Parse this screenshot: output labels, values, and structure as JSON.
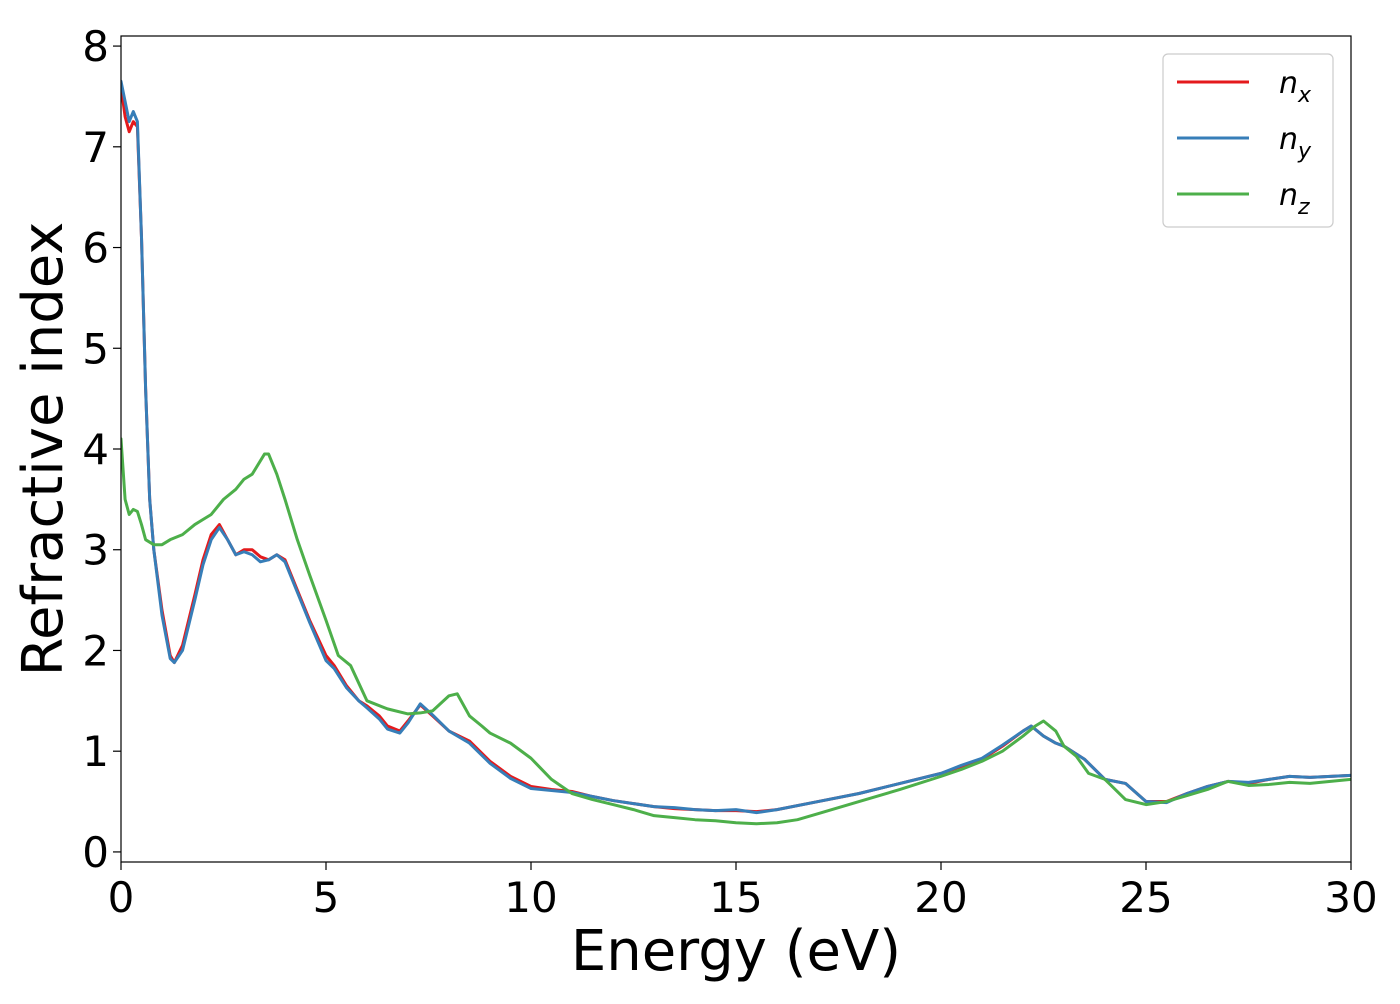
{
  "chart_data": {
    "type": "line",
    "title": "",
    "xlabel": "Energy (eV)",
    "ylabel": "Refractive index",
    "xlim": [
      0,
      30
    ],
    "ylim": [
      -0.1,
      8.1
    ],
    "xticks": [
      0,
      5,
      10,
      15,
      20,
      25,
      30
    ],
    "yticks": [
      0,
      1,
      2,
      3,
      4,
      5,
      6,
      7,
      8
    ],
    "grid": false,
    "legend": "top-right",
    "series": [
      {
        "name": "n_x",
        "label_base": "n",
        "label_sub": "x",
        "color": "#e41a1c",
        "x": [
          0,
          0.1,
          0.2,
          0.3,
          0.4,
          0.5,
          0.6,
          0.7,
          0.8,
          1.0,
          1.2,
          1.3,
          1.5,
          1.8,
          2.0,
          2.2,
          2.4,
          2.6,
          2.8,
          3.0,
          3.2,
          3.4,
          3.6,
          3.8,
          4.0,
          4.3,
          4.6,
          5.0,
          5.2,
          5.5,
          5.8,
          6.0,
          6.3,
          6.5,
          6.8,
          7.0,
          7.3,
          7.6,
          8.0,
          8.5,
          9.0,
          9.5,
          10.0,
          10.5,
          11.0,
          11.5,
          12.0,
          12.5,
          13.0,
          13.5,
          14.0,
          14.5,
          15.0,
          15.5,
          16.0,
          17.0,
          18.0,
          19.0,
          20.0,
          20.5,
          21.0,
          21.5,
          22.0,
          22.2,
          22.5,
          22.8,
          23.0,
          23.5,
          24.0,
          24.5,
          25.0,
          25.5,
          26.0,
          26.5,
          27.0,
          27.5,
          28.0,
          28.5,
          29.0,
          30.0
        ],
        "y": [
          7.6,
          7.3,
          7.15,
          7.25,
          7.2,
          6.1,
          4.6,
          3.5,
          3.0,
          2.4,
          1.95,
          1.88,
          2.05,
          2.55,
          2.9,
          3.15,
          3.25,
          3.1,
          2.95,
          3.0,
          3.0,
          2.93,
          2.9,
          2.95,
          2.9,
          2.6,
          2.3,
          1.95,
          1.85,
          1.65,
          1.5,
          1.45,
          1.35,
          1.25,
          1.2,
          1.3,
          1.46,
          1.35,
          1.2,
          1.1,
          0.9,
          0.75,
          0.65,
          0.62,
          0.6,
          0.55,
          0.51,
          0.48,
          0.45,
          0.43,
          0.42,
          0.41,
          0.41,
          0.4,
          0.42,
          0.5,
          0.58,
          0.68,
          0.78,
          0.85,
          0.92,
          1.05,
          1.2,
          1.25,
          1.15,
          1.08,
          1.05,
          0.92,
          0.72,
          0.68,
          0.5,
          0.5,
          0.58,
          0.65,
          0.7,
          0.68,
          0.72,
          0.75,
          0.74,
          0.76
        ]
      },
      {
        "name": "n_y",
        "label_base": "n",
        "label_sub": "y",
        "color": "#377eb8",
        "x": [
          0,
          0.1,
          0.2,
          0.3,
          0.4,
          0.5,
          0.6,
          0.7,
          0.8,
          1.0,
          1.2,
          1.3,
          1.5,
          1.8,
          2.0,
          2.2,
          2.4,
          2.6,
          2.8,
          3.0,
          3.2,
          3.4,
          3.6,
          3.8,
          4.0,
          4.3,
          4.6,
          5.0,
          5.2,
          5.5,
          5.8,
          6.0,
          6.3,
          6.5,
          6.8,
          7.0,
          7.3,
          7.6,
          8.0,
          8.5,
          9.0,
          9.5,
          10.0,
          10.5,
          11.0,
          11.5,
          12.0,
          12.5,
          13.0,
          13.5,
          14.0,
          14.5,
          15.0,
          15.5,
          16.0,
          17.0,
          18.0,
          19.0,
          20.0,
          20.5,
          21.0,
          21.5,
          22.0,
          22.2,
          22.5,
          22.8,
          23.0,
          23.5,
          24.0,
          24.5,
          25.0,
          25.5,
          26.0,
          26.5,
          27.0,
          27.5,
          28.0,
          28.5,
          29.0,
          30.0
        ],
        "y": [
          7.65,
          7.45,
          7.25,
          7.35,
          7.25,
          6.1,
          4.6,
          3.5,
          3.0,
          2.35,
          1.92,
          1.88,
          2.0,
          2.5,
          2.85,
          3.1,
          3.22,
          3.1,
          2.95,
          2.98,
          2.95,
          2.88,
          2.9,
          2.95,
          2.88,
          2.58,
          2.28,
          1.9,
          1.82,
          1.63,
          1.5,
          1.43,
          1.32,
          1.22,
          1.18,
          1.28,
          1.47,
          1.36,
          1.2,
          1.08,
          0.88,
          0.73,
          0.63,
          0.61,
          0.59,
          0.55,
          0.51,
          0.48,
          0.45,
          0.44,
          0.42,
          0.41,
          0.42,
          0.39,
          0.42,
          0.5,
          0.58,
          0.68,
          0.78,
          0.86,
          0.93,
          1.06,
          1.2,
          1.25,
          1.15,
          1.08,
          1.05,
          0.92,
          0.72,
          0.68,
          0.5,
          0.49,
          0.58,
          0.65,
          0.7,
          0.69,
          0.72,
          0.75,
          0.74,
          0.76
        ]
      },
      {
        "name": "n_z",
        "label_base": "n",
        "label_sub": "z",
        "color": "#4daf4a",
        "x": [
          0,
          0.1,
          0.2,
          0.3,
          0.4,
          0.5,
          0.6,
          0.8,
          1.0,
          1.2,
          1.5,
          1.8,
          2.0,
          2.2,
          2.5,
          2.8,
          3.0,
          3.2,
          3.5,
          3.6,
          3.8,
          4.0,
          4.3,
          4.6,
          5.0,
          5.3,
          5.6,
          6.0,
          6.5,
          7.0,
          7.3,
          7.6,
          8.0,
          8.2,
          8.5,
          8.8,
          9.0,
          9.5,
          10.0,
          10.5,
          11.0,
          11.5,
          12.0,
          12.5,
          13.0,
          13.5,
          14.0,
          14.5,
          15.0,
          15.5,
          16.0,
          16.5,
          17.0,
          18.0,
          19.0,
          20.0,
          20.5,
          21.0,
          21.5,
          22.0,
          22.3,
          22.5,
          22.8,
          23.0,
          23.3,
          23.6,
          24.0,
          24.5,
          25.0,
          25.5,
          26.0,
          26.5,
          27.0,
          27.5,
          28.0,
          28.5,
          29.0,
          30.0
        ],
        "y": [
          4.1,
          3.5,
          3.35,
          3.4,
          3.38,
          3.25,
          3.1,
          3.05,
          3.05,
          3.1,
          3.15,
          3.25,
          3.3,
          3.35,
          3.5,
          3.6,
          3.7,
          3.75,
          3.95,
          3.95,
          3.75,
          3.5,
          3.1,
          2.75,
          2.3,
          1.95,
          1.85,
          1.5,
          1.42,
          1.37,
          1.38,
          1.4,
          1.55,
          1.57,
          1.35,
          1.25,
          1.18,
          1.08,
          0.93,
          0.72,
          0.58,
          0.52,
          0.47,
          0.42,
          0.36,
          0.34,
          0.32,
          0.31,
          0.29,
          0.28,
          0.29,
          0.32,
          0.38,
          0.5,
          0.62,
          0.75,
          0.82,
          0.9,
          1.0,
          1.15,
          1.25,
          1.3,
          1.2,
          1.05,
          0.95,
          0.78,
          0.72,
          0.52,
          0.47,
          0.5,
          0.56,
          0.62,
          0.7,
          0.66,
          0.67,
          0.69,
          0.68,
          0.72
        ]
      }
    ]
  }
}
